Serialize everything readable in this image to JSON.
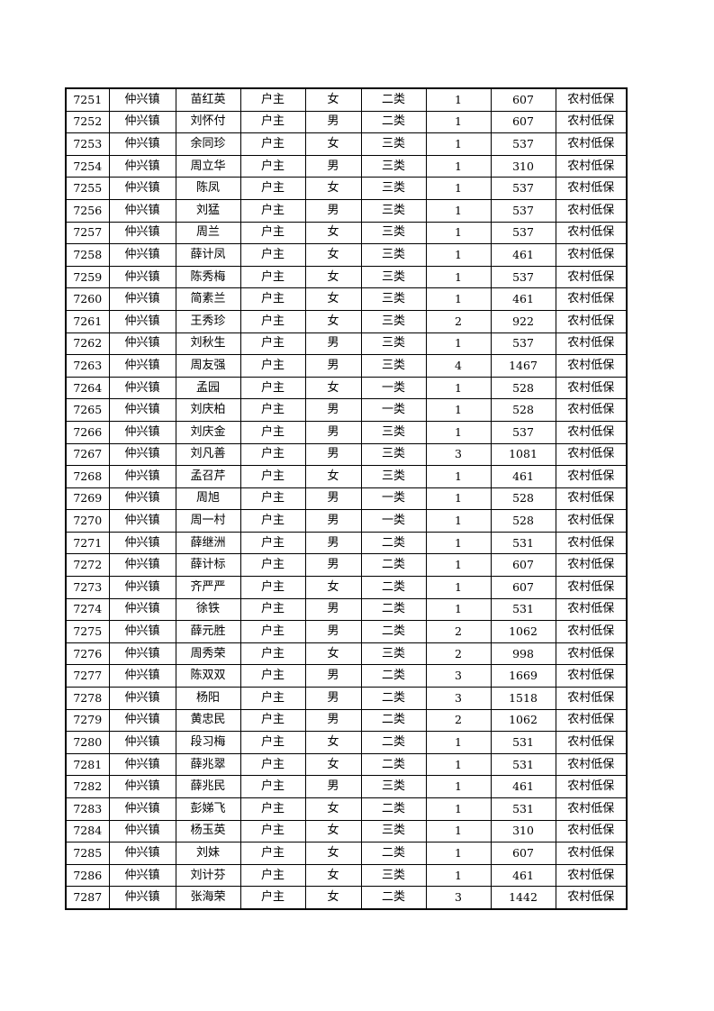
{
  "table": {
    "rows": [
      [
        "7251",
        "仲兴镇",
        "苗红英",
        "户主",
        "女",
        "二类",
        "1",
        "607",
        "农村低保"
      ],
      [
        "7252",
        "仲兴镇",
        "刘怀付",
        "户主",
        "男",
        "二类",
        "1",
        "607",
        "农村低保"
      ],
      [
        "7253",
        "仲兴镇",
        "余同珍",
        "户主",
        "女",
        "三类",
        "1",
        "537",
        "农村低保"
      ],
      [
        "7254",
        "仲兴镇",
        "周立华",
        "户主",
        "男",
        "三类",
        "1",
        "310",
        "农村低保"
      ],
      [
        "7255",
        "仲兴镇",
        "陈凤",
        "户主",
        "女",
        "三类",
        "1",
        "537",
        "农村低保"
      ],
      [
        "7256",
        "仲兴镇",
        "刘猛",
        "户主",
        "男",
        "三类",
        "1",
        "537",
        "农村低保"
      ],
      [
        "7257",
        "仲兴镇",
        "周兰",
        "户主",
        "女",
        "三类",
        "1",
        "537",
        "农村低保"
      ],
      [
        "7258",
        "仲兴镇",
        "薛计凤",
        "户主",
        "女",
        "三类",
        "1",
        "461",
        "农村低保"
      ],
      [
        "7259",
        "仲兴镇",
        "陈秀梅",
        "户主",
        "女",
        "三类",
        "1",
        "537",
        "农村低保"
      ],
      [
        "7260",
        "仲兴镇",
        "简素兰",
        "户主",
        "女",
        "三类",
        "1",
        "461",
        "农村低保"
      ],
      [
        "7261",
        "仲兴镇",
        "王秀珍",
        "户主",
        "女",
        "三类",
        "2",
        "922",
        "农村低保"
      ],
      [
        "7262",
        "仲兴镇",
        "刘秋生",
        "户主",
        "男",
        "三类",
        "1",
        "537",
        "农村低保"
      ],
      [
        "7263",
        "仲兴镇",
        "周友强",
        "户主",
        "男",
        "三类",
        "4",
        "1467",
        "农村低保"
      ],
      [
        "7264",
        "仲兴镇",
        "孟园",
        "户主",
        "女",
        "一类",
        "1",
        "528",
        "农村低保"
      ],
      [
        "7265",
        "仲兴镇",
        "刘庆柏",
        "户主",
        "男",
        "一类",
        "1",
        "528",
        "农村低保"
      ],
      [
        "7266",
        "仲兴镇",
        "刘庆金",
        "户主",
        "男",
        "三类",
        "1",
        "537",
        "农村低保"
      ],
      [
        "7267",
        "仲兴镇",
        "刘凡善",
        "户主",
        "男",
        "三类",
        "3",
        "1081",
        "农村低保"
      ],
      [
        "7268",
        "仲兴镇",
        "孟召芹",
        "户主",
        "女",
        "三类",
        "1",
        "461",
        "农村低保"
      ],
      [
        "7269",
        "仲兴镇",
        "周旭",
        "户主",
        "男",
        "一类",
        "1",
        "528",
        "农村低保"
      ],
      [
        "7270",
        "仲兴镇",
        "周一村",
        "户主",
        "男",
        "一类",
        "1",
        "528",
        "农村低保"
      ],
      [
        "7271",
        "仲兴镇",
        "薛继洲",
        "户主",
        "男",
        "二类",
        "1",
        "531",
        "农村低保"
      ],
      [
        "7272",
        "仲兴镇",
        "薛计标",
        "户主",
        "男",
        "二类",
        "1",
        "607",
        "农村低保"
      ],
      [
        "7273",
        "仲兴镇",
        "齐严严",
        "户主",
        "女",
        "二类",
        "1",
        "607",
        "农村低保"
      ],
      [
        "7274",
        "仲兴镇",
        "徐铁",
        "户主",
        "男",
        "二类",
        "1",
        "531",
        "农村低保"
      ],
      [
        "7275",
        "仲兴镇",
        "薛元胜",
        "户主",
        "男",
        "二类",
        "2",
        "1062",
        "农村低保"
      ],
      [
        "7276",
        "仲兴镇",
        "周秀荣",
        "户主",
        "女",
        "三类",
        "2",
        "998",
        "农村低保"
      ],
      [
        "7277",
        "仲兴镇",
        "陈双双",
        "户主",
        "男",
        "二类",
        "3",
        "1669",
        "农村低保"
      ],
      [
        "7278",
        "仲兴镇",
        "杨阳",
        "户主",
        "男",
        "二类",
        "3",
        "1518",
        "农村低保"
      ],
      [
        "7279",
        "仲兴镇",
        "黄忠民",
        "户主",
        "男",
        "二类",
        "2",
        "1062",
        "农村低保"
      ],
      [
        "7280",
        "仲兴镇",
        "段习梅",
        "户主",
        "女",
        "二类",
        "1",
        "531",
        "农村低保"
      ],
      [
        "7281",
        "仲兴镇",
        "薛兆翠",
        "户主",
        "女",
        "二类",
        "1",
        "531",
        "农村低保"
      ],
      [
        "7282",
        "仲兴镇",
        "薛兆民",
        "户主",
        "男",
        "三类",
        "1",
        "461",
        "农村低保"
      ],
      [
        "7283",
        "仲兴镇",
        "彭娣飞",
        "户主",
        "女",
        "二类",
        "1",
        "531",
        "农村低保"
      ],
      [
        "7284",
        "仲兴镇",
        "杨玉英",
        "户主",
        "女",
        "三类",
        "1",
        "310",
        "农村低保"
      ],
      [
        "7285",
        "仲兴镇",
        "刘妹",
        "户主",
        "女",
        "二类",
        "1",
        "607",
        "农村低保"
      ],
      [
        "7286",
        "仲兴镇",
        "刘计芬",
        "户主",
        "女",
        "三类",
        "1",
        "461",
        "农村低保"
      ],
      [
        "7287",
        "仲兴镇",
        "张海荣",
        "户主",
        "女",
        "二类",
        "3",
        "1442",
        "农村低保"
      ]
    ]
  }
}
